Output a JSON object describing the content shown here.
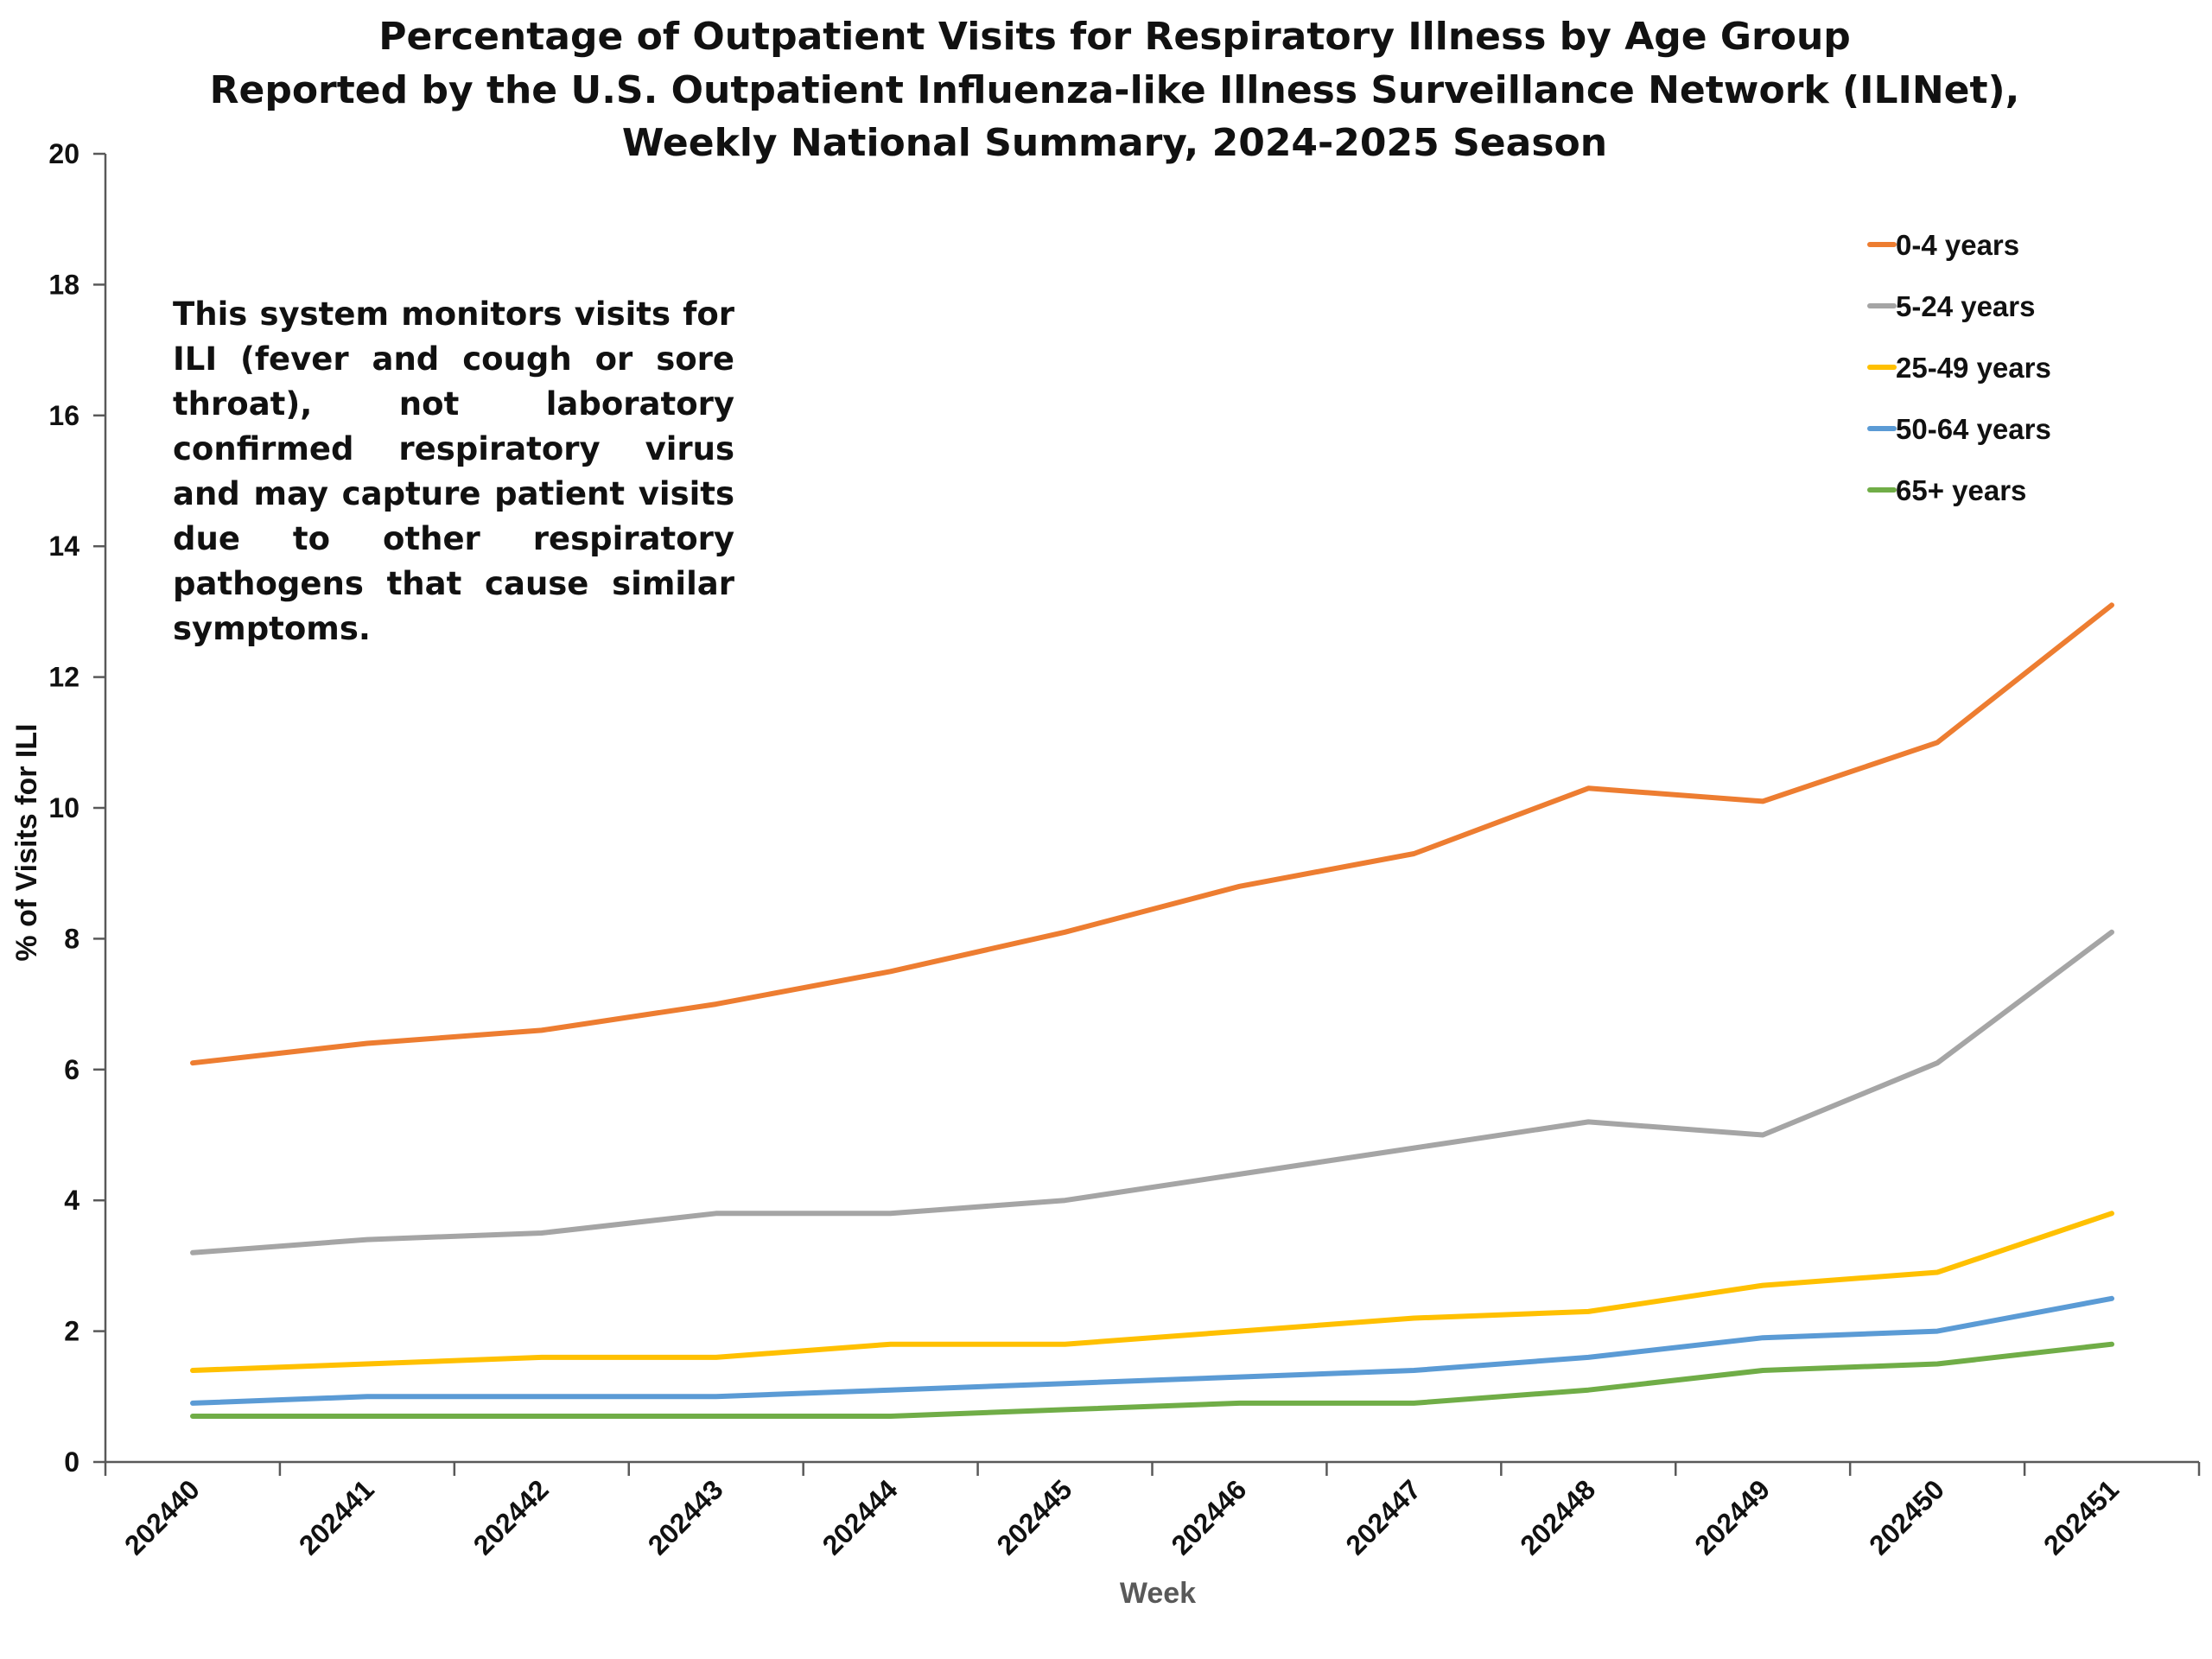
{
  "chart_data": {
    "type": "line",
    "title": [
      "Percentage of Outpatient Visits for Respiratory Illness by Age Group",
      "Reported by the U.S. Outpatient Influenza-like Illness Surveillance Network (ILINet),",
      "Weekly National Summary, 2024-2025 Season"
    ],
    "annotation": "This system monitors visits for ILI (fever and cough or sore throat), not laboratory confirmed respiratory virus and may capture patient visits due to other respiratory pathogens that cause similar symptoms.",
    "xlabel": "Week",
    "ylabel": "% of Visits for ILI",
    "categories": [
      "202440",
      "202441",
      "202442",
      "202443",
      "202444",
      "202445",
      "202446",
      "202447",
      "202448",
      "202449",
      "202450",
      "202451"
    ],
    "ylim": [
      0,
      20
    ],
    "yticks": [
      "0",
      "2",
      "4",
      "6",
      "8",
      "10",
      "12",
      "14",
      "16",
      "18",
      "20"
    ],
    "grid": false,
    "legend_position": "top-right",
    "series": [
      {
        "name": "0-4 years",
        "color": "#ED7D31",
        "values": [
          6.1,
          6.4,
          6.6,
          7.0,
          7.5,
          8.1,
          8.8,
          9.3,
          10.3,
          10.1,
          11.0,
          13.1
        ]
      },
      {
        "name": "5-24 years",
        "color": "#A5A5A5",
        "values": [
          3.2,
          3.4,
          3.5,
          3.8,
          3.8,
          4.0,
          4.4,
          4.8,
          5.2,
          5.0,
          6.1,
          8.1
        ]
      },
      {
        "name": "25-49 years",
        "color": "#FFC000",
        "values": [
          1.4,
          1.5,
          1.6,
          1.6,
          1.8,
          1.8,
          2.0,
          2.2,
          2.3,
          2.7,
          2.9,
          3.8
        ]
      },
      {
        "name": "50-64 years",
        "color": "#5B9BD5",
        "values": [
          0.9,
          1.0,
          1.0,
          1.0,
          1.1,
          1.2,
          1.3,
          1.4,
          1.6,
          1.9,
          2.0,
          2.5
        ]
      },
      {
        "name": "65+ years",
        "color": "#70AD47",
        "values": [
          0.7,
          0.7,
          0.7,
          0.7,
          0.7,
          0.8,
          0.9,
          0.9,
          1.1,
          1.4,
          1.5,
          1.8
        ]
      }
    ],
    "colors": {
      "axis": "#595959",
      "xlabel": "#595959",
      "text": "#111111"
    }
  }
}
